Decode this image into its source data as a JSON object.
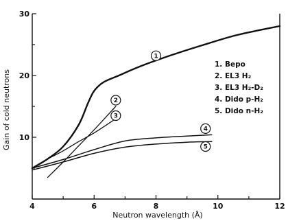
{
  "chart_data": {
    "type": "line",
    "title": "",
    "xlabel": "Neutron wavelength (Å)",
    "ylabel": "Gain of cold neutrons",
    "xlim": [
      4,
      12
    ],
    "ylim": [
      0,
      30
    ],
    "xticks": [
      "4",
      "6",
      "8",
      "10",
      "12"
    ],
    "yticks": [
      "10",
      "20",
      "30"
    ],
    "grid": false,
    "legend_placement": "right",
    "series": [
      {
        "name": "Bepo",
        "marker": "1",
        "x": [
          4.0,
          4.5,
          5.0,
          5.5,
          5.8,
          6.0,
          6.3,
          6.8,
          7.5,
          8.5,
          9.5,
          10.5,
          11.3,
          12.0
        ],
        "y": [
          5.0,
          6.5,
          8.5,
          12.0,
          15.5,
          17.5,
          18.9,
          20.0,
          21.5,
          23.3,
          24.9,
          26.4,
          27.3,
          28.0
        ],
        "width": 2.4
      },
      {
        "name": "EL3 H₂",
        "marker": "2",
        "x": [
          4.5,
          5.0,
          5.5,
          6.0,
          6.7
        ],
        "y": [
          3.5,
          6.0,
          8.6,
          11.2,
          15.0
        ],
        "width": 1.3
      },
      {
        "name": "EL3 H₂-D₂",
        "marker": "3",
        "x": [
          4.5,
          5.0,
          5.5,
          6.0,
          6.7
        ],
        "y": [
          6.5,
          7.8,
          9.3,
          10.7,
          13.0
        ],
        "width": 1.3
      },
      {
        "name": "Dido p-H₂",
        "marker": "4",
        "x": [
          4.0,
          5.0,
          6.0,
          7.0,
          8.0,
          9.0,
          9.8
        ],
        "y": [
          5.0,
          6.4,
          8.0,
          9.4,
          9.9,
          10.2,
          10.4
        ],
        "width": 1.5
      },
      {
        "name": "Dido n-H₂",
        "marker": "5",
        "x": [
          4.0,
          5.0,
          6.0,
          7.0,
          8.0,
          9.0,
          9.8
        ],
        "y": [
          4.7,
          6.0,
          7.4,
          8.4,
          8.9,
          9.2,
          9.3
        ],
        "width": 1.5
      }
    ],
    "marker_positions": [
      {
        "label": "1",
        "x": 8.0,
        "y": 23.2
      },
      {
        "label": "2",
        "x": 6.7,
        "y": 16.0
      },
      {
        "label": "3",
        "x": 6.7,
        "y": 13.5
      },
      {
        "label": "4",
        "x": 9.6,
        "y": 11.4
      },
      {
        "label": "5",
        "x": 9.6,
        "y": 8.5
      }
    ],
    "legend": [
      {
        "number": "1.",
        "text": "Bepo"
      },
      {
        "number": "2.",
        "text": "EL3 H₂"
      },
      {
        "number": "3.",
        "text": "EL3 H₂-D₂"
      },
      {
        "number": "4.",
        "text": "Dido p-H₂"
      },
      {
        "number": "5.",
        "text": "Dido n-H₂"
      }
    ]
  }
}
